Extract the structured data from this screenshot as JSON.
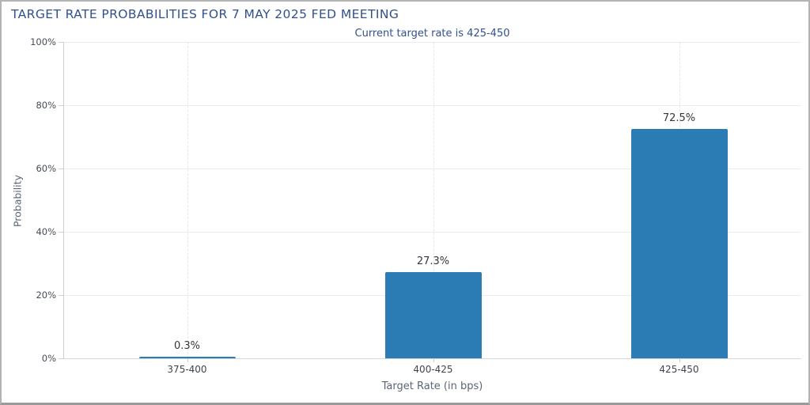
{
  "window": {
    "background": "#ffffff",
    "border_color": "#a8a8a8"
  },
  "chart_data": {
    "type": "bar",
    "title": "TARGET RATE PROBABILITIES FOR 7 MAY 2025 FED MEETING",
    "subtitle": "Current target rate is 425-450",
    "categories": [
      "375-400",
      "400-425",
      "425-450"
    ],
    "values": [
      0.3,
      27.3,
      72.5
    ],
    "data_labels": [
      "0.3%",
      "27.3%",
      "72.5%"
    ],
    "xlabel": "Target Rate (in bps)",
    "ylabel": "Probability",
    "ylim": [
      0,
      100
    ],
    "ytick_labels": [
      "0%",
      "20%",
      "40%",
      "60%",
      "80%",
      "100%"
    ],
    "ytick_values": [
      0,
      20,
      40,
      60,
      80,
      100
    ],
    "grid": "on",
    "legend": "none",
    "bar_color": "#2b7cb5",
    "title_color": "#31518e",
    "axis_label_color": "#5a6673",
    "tick_label_color": "#474c55"
  }
}
